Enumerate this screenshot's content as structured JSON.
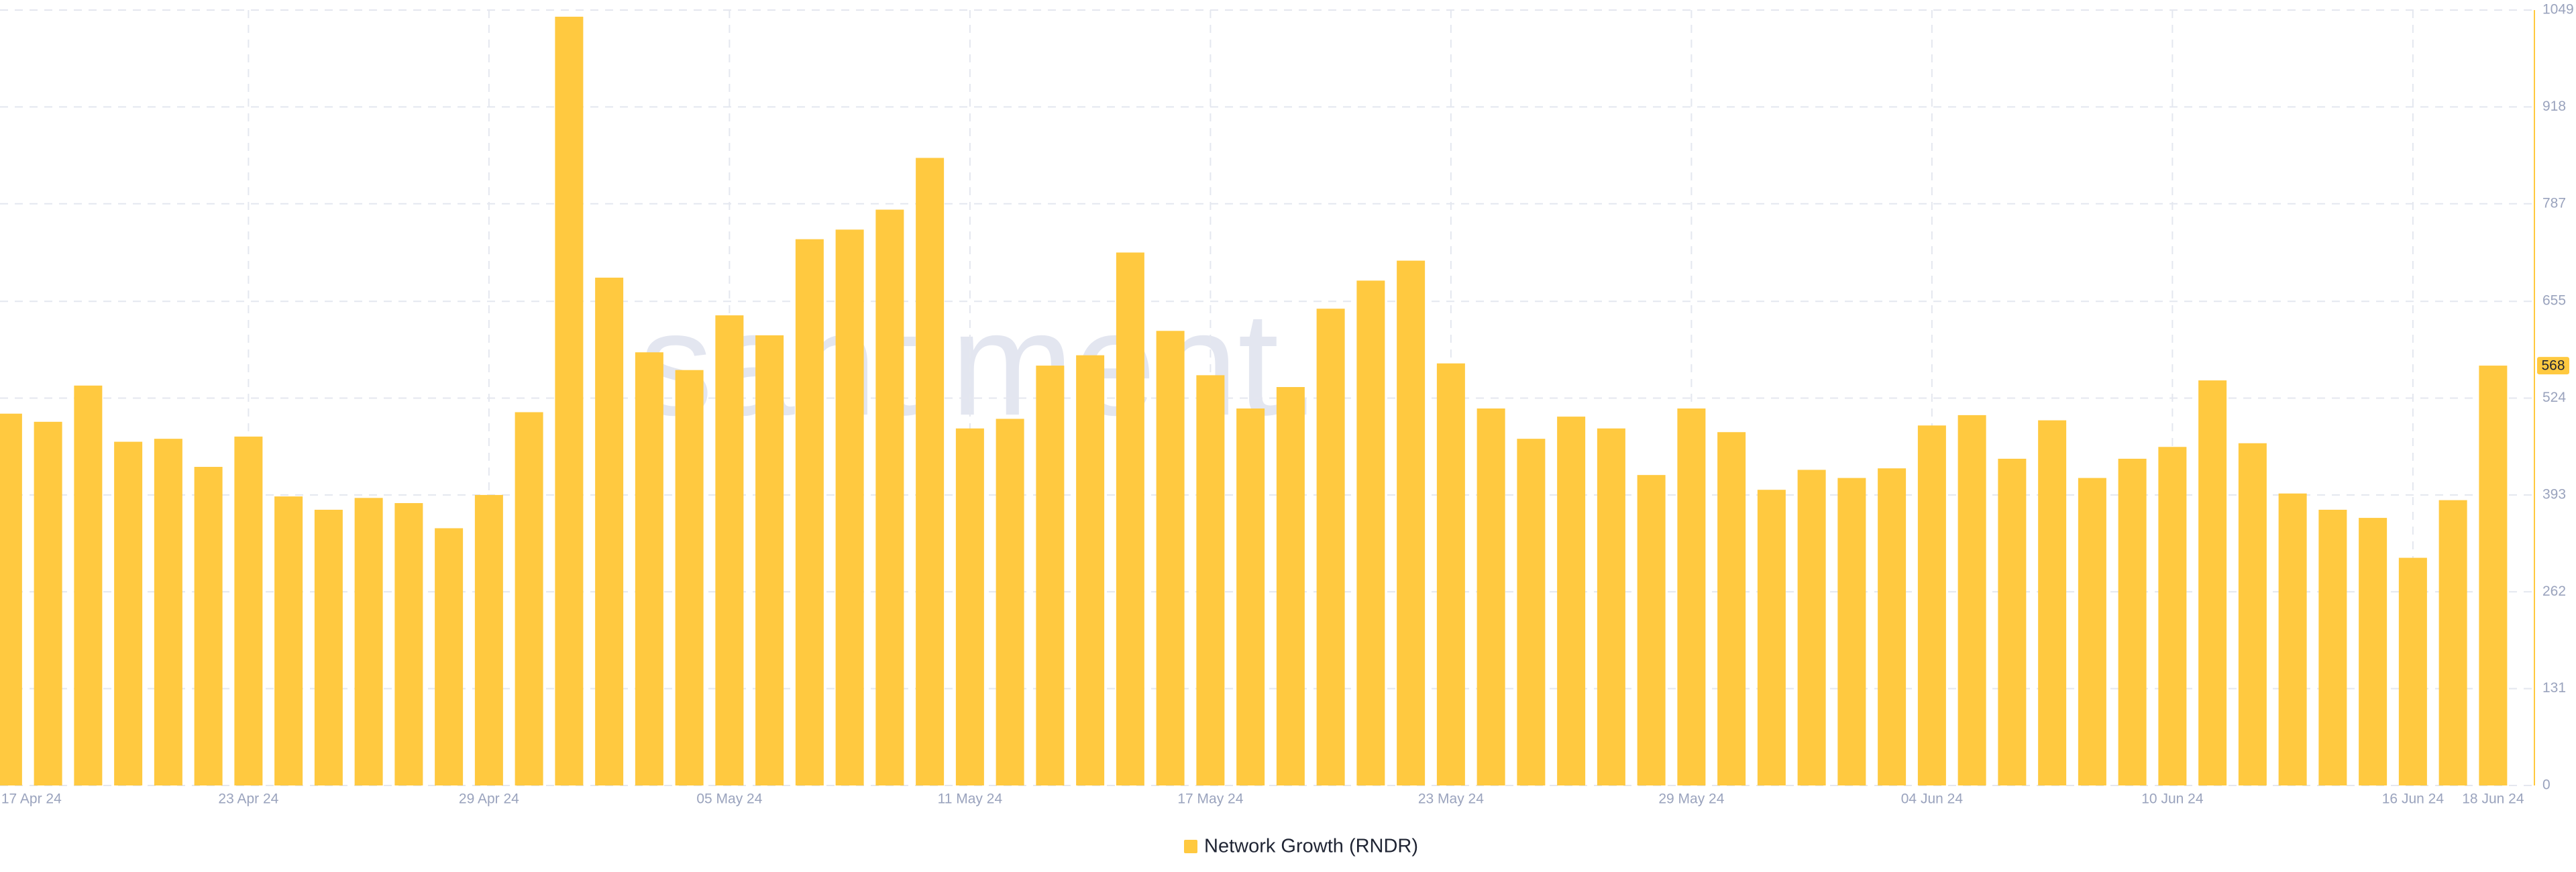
{
  "chart_data": {
    "type": "bar",
    "watermark": "santiment.",
    "categories": [
      "17 Apr 24",
      null,
      null,
      null,
      null,
      null,
      "23 Apr 24",
      null,
      null,
      null,
      null,
      null,
      "29 Apr 24",
      null,
      null,
      null,
      null,
      null,
      "05 May 24",
      null,
      null,
      null,
      null,
      null,
      "11 May 24",
      null,
      null,
      null,
      null,
      null,
      "17 May 24",
      null,
      null,
      null,
      null,
      null,
      "23 May 24",
      null,
      null,
      null,
      null,
      null,
      "29 May 24",
      null,
      null,
      null,
      null,
      null,
      "04 Jun 24",
      null,
      null,
      null,
      null,
      null,
      "10 Jun 24",
      null,
      null,
      null,
      null,
      null,
      "16 Jun 24",
      null,
      "18 Jun 24"
    ],
    "series": [
      {
        "name": "Network Growth (RNDR)",
        "color": "#ffc940",
        "values": [
          503,
          492,
          541,
          465,
          469,
          431,
          472,
          391,
          373,
          389,
          382,
          348,
          393,
          505,
          1040,
          687,
          586,
          562,
          636,
          609,
          739,
          752,
          779,
          849,
          483,
          496,
          568,
          582,
          721,
          615,
          555,
          510,
          539,
          645,
          683,
          710,
          571,
          510,
          469,
          499,
          483,
          420,
          510,
          478,
          400,
          427,
          416,
          429,
          487,
          501,
          442,
          494,
          416,
          442,
          458,
          548,
          463,
          395,
          373,
          362,
          308,
          386,
          568
        ]
      }
    ],
    "ylim": [
      0,
      1049
    ],
    "yticks": [
      0,
      131,
      262,
      393,
      524,
      655,
      787,
      918,
      1049
    ],
    "grid": true
  }
}
